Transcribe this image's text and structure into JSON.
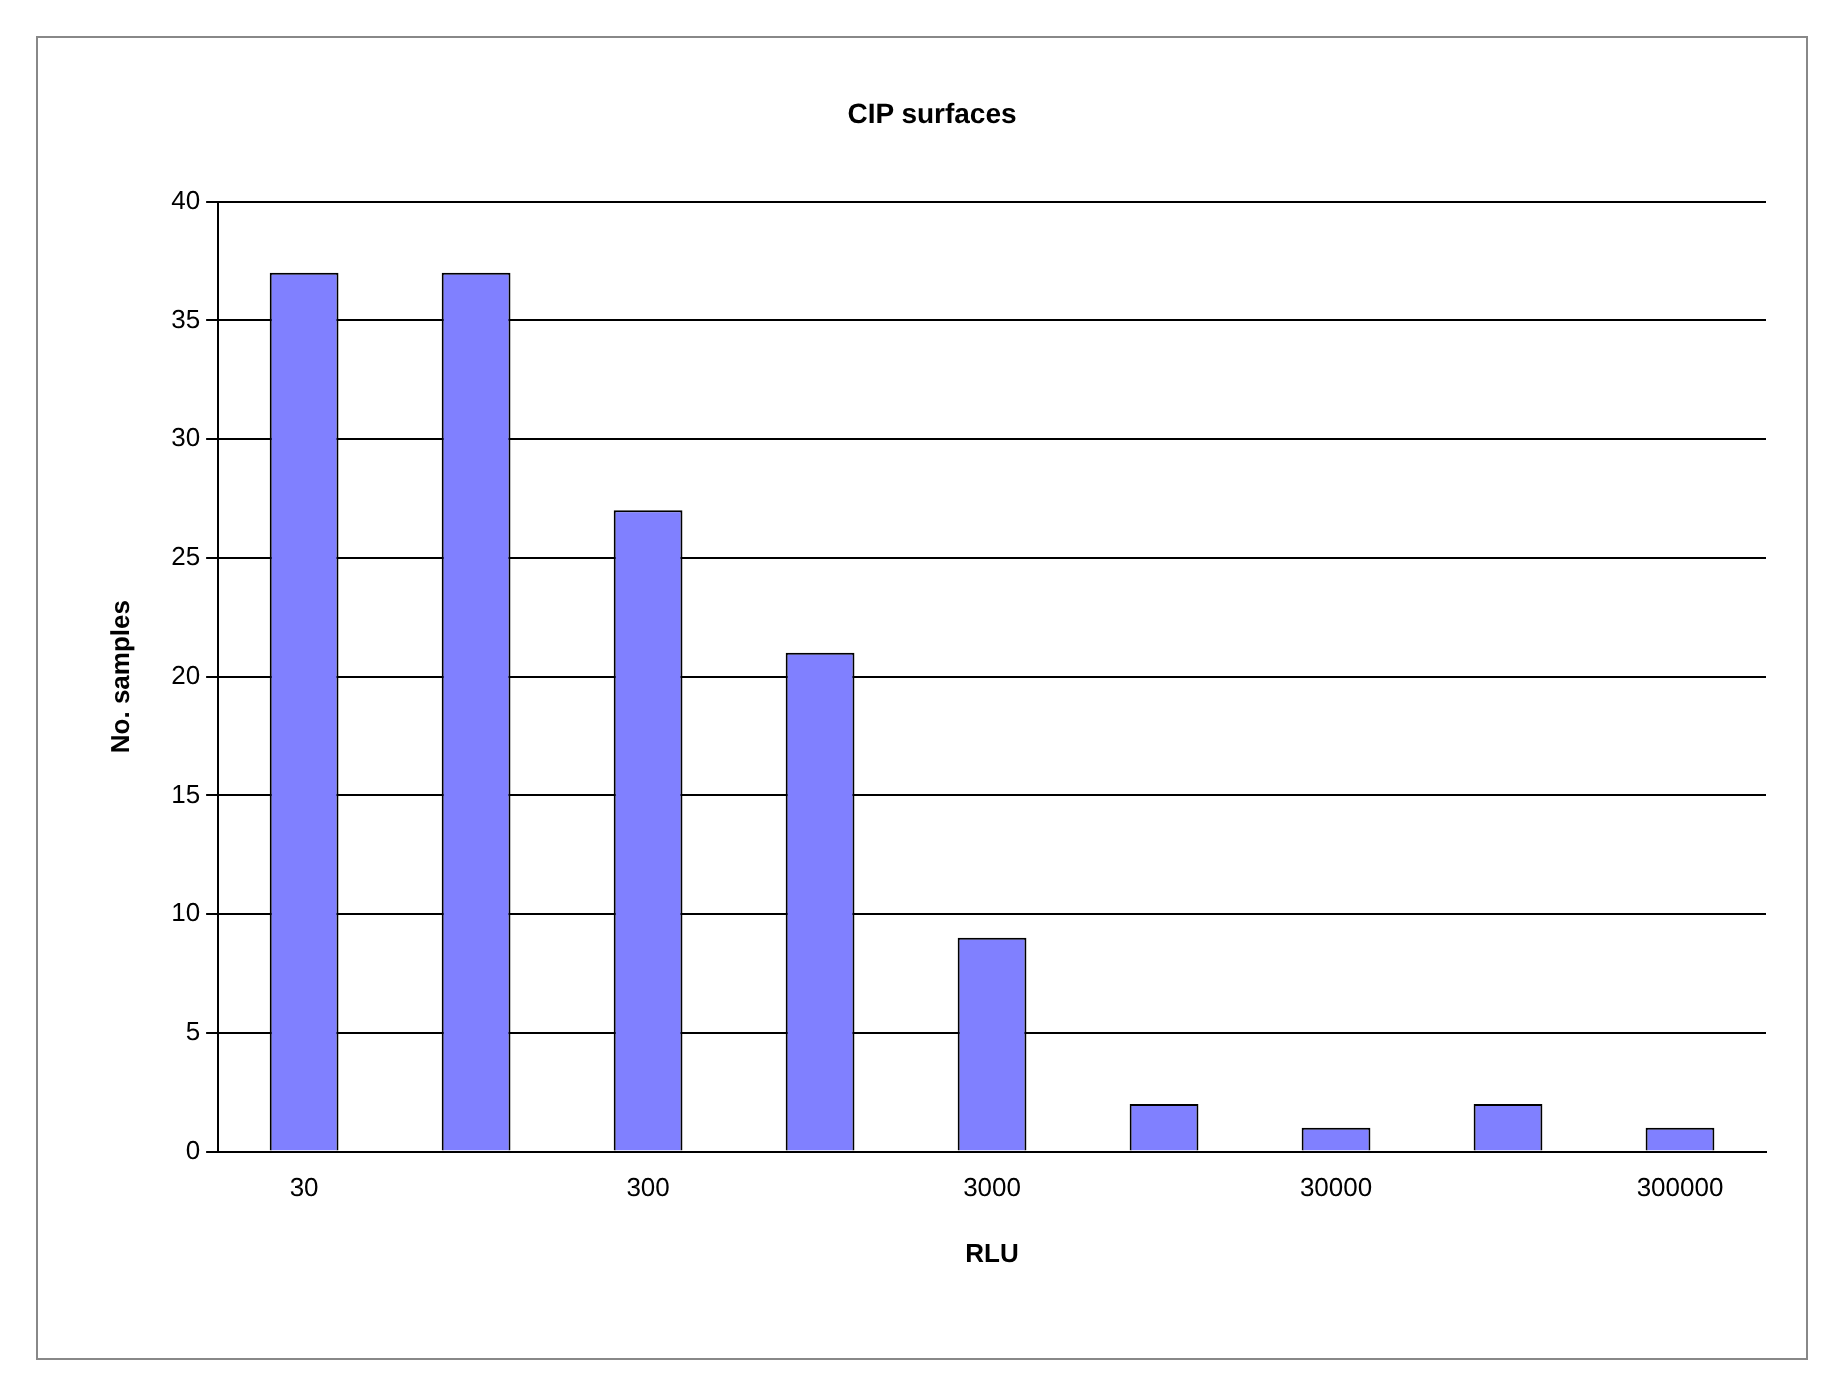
{
  "chart_data": {
    "type": "bar",
    "title": "CIP surfaces",
    "xlabel": "RLU",
    "ylabel": "No. samples",
    "categories": [
      "30",
      null,
      "300",
      null,
      "3000",
      null,
      "30000",
      null,
      "300000"
    ],
    "values": [
      37,
      37,
      27,
      21,
      9,
      2,
      1,
      2,
      1
    ],
    "color": "#8080ff",
    "ylim": [
      0,
      40
    ],
    "yticks": [
      0,
      5,
      10,
      15,
      20,
      25,
      30,
      35,
      40
    ],
    "grid": "y",
    "legend": false
  }
}
